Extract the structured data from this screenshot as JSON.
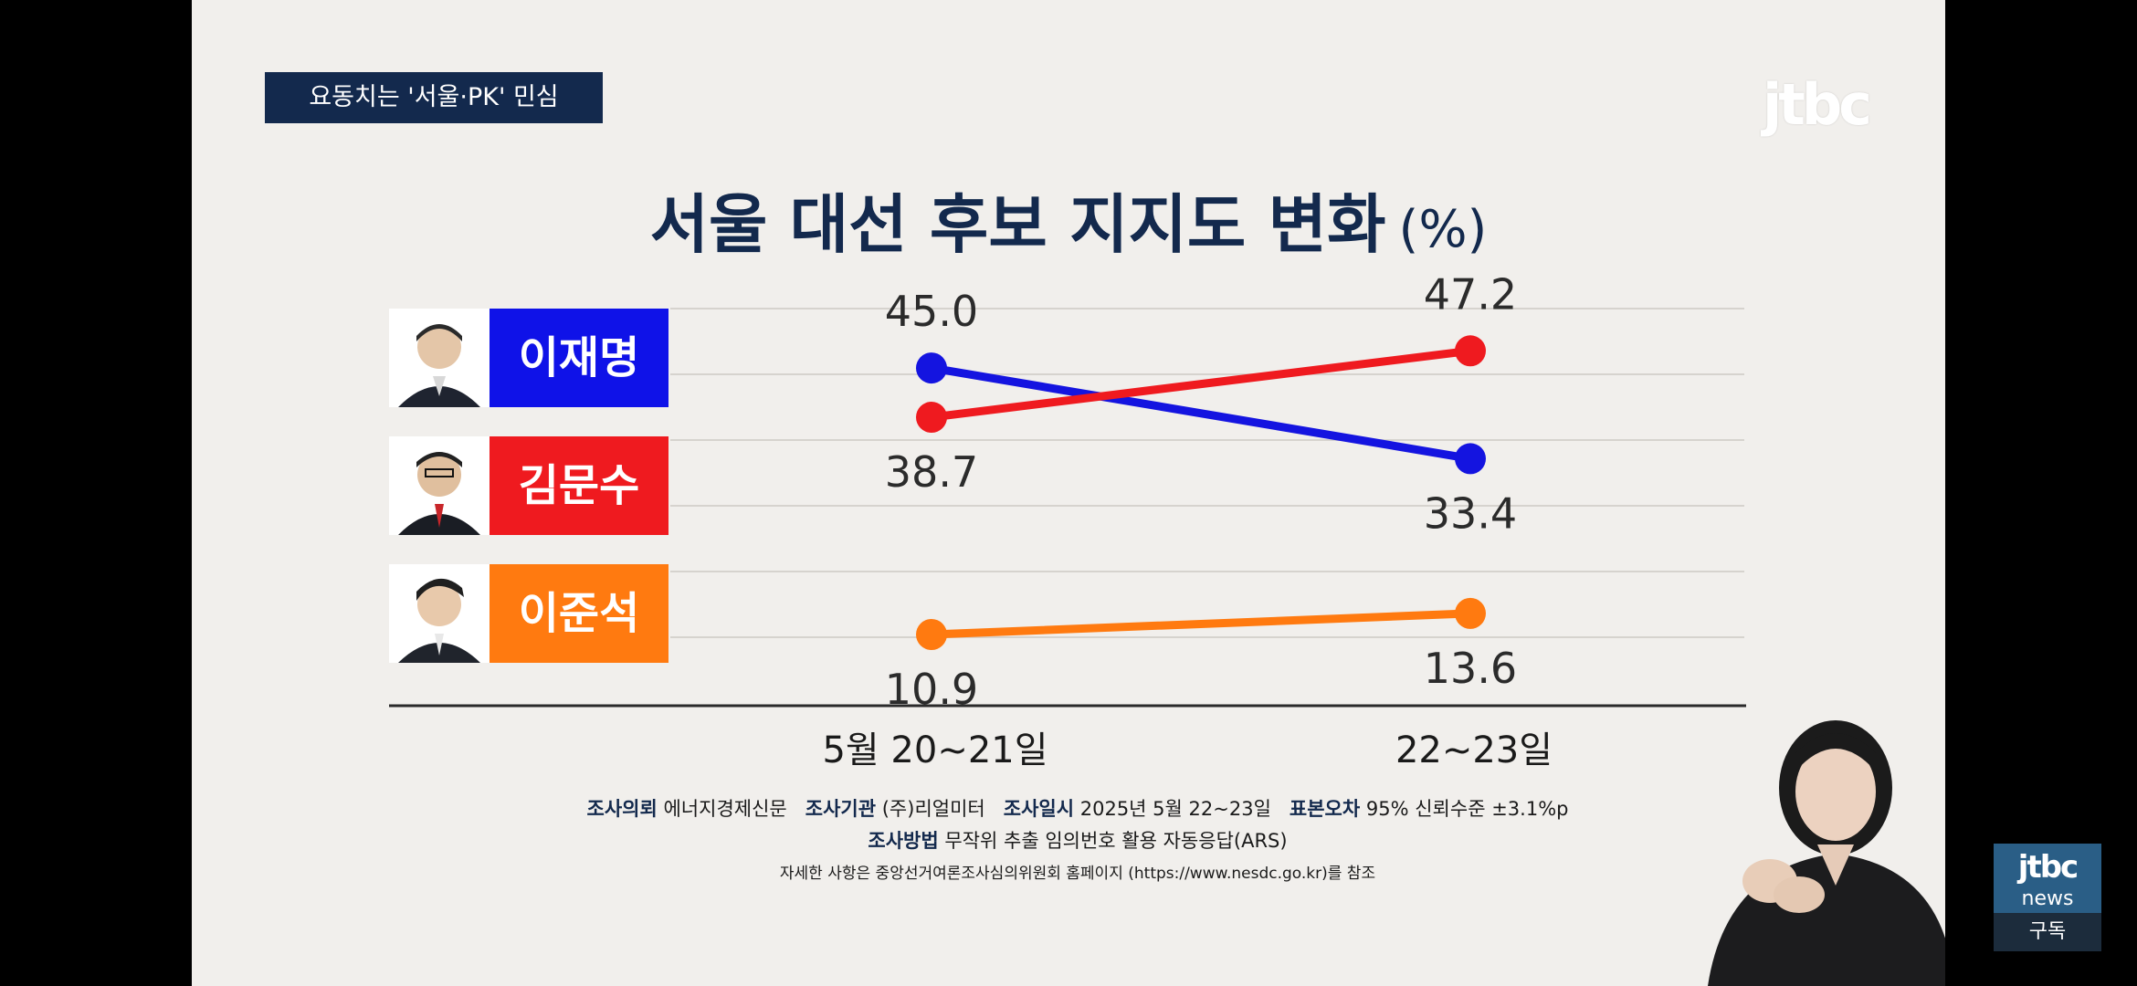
{
  "topic_tag": "요동치는 '서울·PK' 민심",
  "brand_logo": "jtbc",
  "title": "서울 대선 후보 지지도 변화",
  "title_unit": "(%)",
  "candidates": [
    {
      "name": "이재명",
      "color": "#0f12e8"
    },
    {
      "name": "김문수",
      "color": "#ef1a1f"
    },
    {
      "name": "이준석",
      "color": "#ff7a10"
    }
  ],
  "chart_data": {
    "type": "line",
    "categories": [
      "5월 20~21일",
      "22~23일"
    ],
    "series": [
      {
        "name": "이재명",
        "values": [
          45.0,
          33.4
        ],
        "labels": [
          "45.0",
          "33.4"
        ],
        "color": "#1414e0"
      },
      {
        "name": "김문수",
        "values": [
          38.7,
          47.2
        ],
        "labels": [
          "38.7",
          "47.2"
        ],
        "color": "#ef1a1f"
      },
      {
        "name": "이준석",
        "values": [
          10.9,
          13.6
        ],
        "labels": [
          "10.9",
          "13.6"
        ],
        "color": "#ff7a10"
      }
    ],
    "grid": true
  },
  "footnote": {
    "client_label": "조사의뢰",
    "client": "에너지경제신문",
    "agency_label": "조사기관",
    "agency": "(주)리얼미터",
    "date_label": "조사일시",
    "date": "2025년 5월 22~23일",
    "error_label": "표본오차",
    "error": "95% 신뢰수준 ±3.1%p",
    "method_label": "조사방법",
    "method": "무작위 추출 임의번호 활용 자동응답(ARS)",
    "reference": "자세한 사항은 중앙선거여론조사심의위원회 홈페이지 (https://www.nesdc.go.kr)를 참조"
  },
  "subscribe": {
    "brand": "jtbc",
    "sub_brand": "news",
    "label": "구독"
  }
}
